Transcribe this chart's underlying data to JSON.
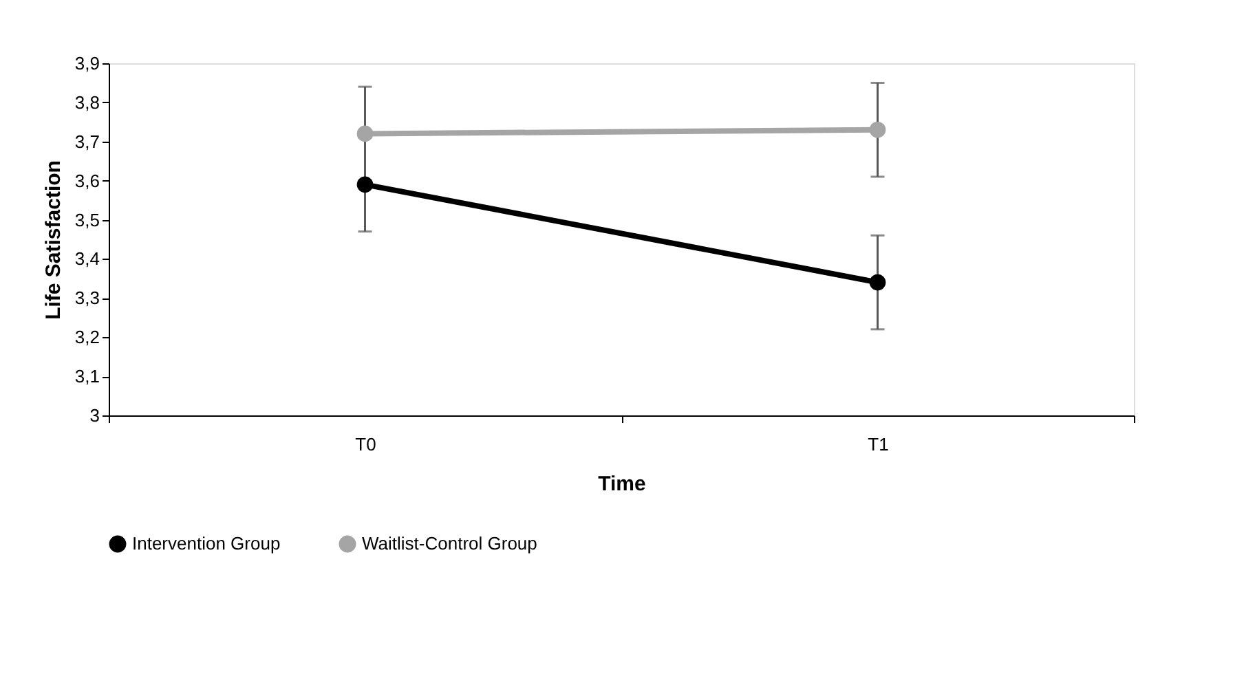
{
  "chart_data": {
    "type": "line",
    "xlabel": "Time",
    "ylabel": "Life Satisfaction",
    "categories": [
      "T0",
      "T1"
    ],
    "series": [
      {
        "name": "Intervention Group",
        "color": "#000000",
        "values": [
          3.59,
          3.34
        ],
        "errors": [
          0.12,
          0.12
        ]
      },
      {
        "name": "Waitlist-Control Group",
        "color": "#a5a5a5",
        "values": [
          3.72,
          3.73
        ],
        "errors": [
          0.12,
          0.12
        ]
      }
    ],
    "ylim": [
      3,
      3.9
    ],
    "yticks": [
      3,
      {
        "value": 3.1,
        "label": "3,1"
      },
      {
        "value": 3.2,
        "label": "3,2"
      },
      {
        "value": 3.3,
        "label": "3,3"
      },
      {
        "value": 3.4,
        "label": "3,4"
      },
      {
        "value": 3.5,
        "label": "3,5"
      },
      {
        "value": 3.6,
        "label": "3,6"
      },
      {
        "value": 3.7,
        "label": "3,7"
      },
      {
        "value": 3.8,
        "label": "3,8"
      },
      {
        "value": 3.9,
        "label": "3,9"
      }
    ],
    "grid": false,
    "legend": "bottom",
    "marker": "circle",
    "line_style": "solid"
  }
}
